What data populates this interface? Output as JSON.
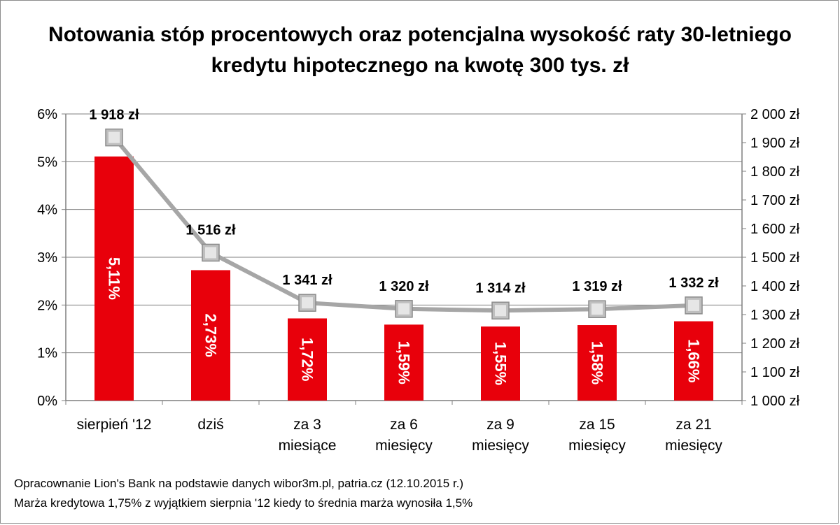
{
  "title_line1": "Notowania stóp procentowych oraz potencjalna wysokość raty 30-letniego",
  "title_line2": "kredytu hipotecznego na kwotę 300 tys. zł",
  "notes": [
    "Opracownanie Lion's Bank na podstawie danych wibor3m.pl, patria.cz (12.10.2015 r.)",
    "Marża kredytowa 1,75% z wyjątkiem sierpnia '12 kiedy to średnia marża wynosiła 1,5%"
  ],
  "colors": {
    "bar": "#e8000b",
    "line": "#a6a6a6",
    "marker": "#bfbfbf",
    "grid": "#7f7f7f"
  },
  "chart_data": {
    "type": "bar+line",
    "title": "Notowania stóp procentowych oraz potencjalna wysokość raty 30-letniego kredytu hipotecznego na kwotę 300 tys. zł",
    "categories": [
      [
        "sierpień '12"
      ],
      [
        "dziś"
      ],
      [
        "za 3",
        "miesiące"
      ],
      [
        "za 6",
        "miesięcy"
      ],
      [
        "za 9",
        "miesięcy"
      ],
      [
        "za 15",
        "miesięcy"
      ],
      [
        "za 21",
        "miesięcy"
      ]
    ],
    "bar_series": {
      "values": [
        5.11,
        2.73,
        1.72,
        1.59,
        1.55,
        1.58,
        1.66
      ],
      "labels": [
        "5,11%",
        "2,73%",
        "1,72%",
        "1,59%",
        "1,55%",
        "1,58%",
        "1,66%"
      ],
      "axis": "left"
    },
    "line_series": {
      "values": [
        1918,
        1516,
        1341,
        1320,
        1314,
        1319,
        1332
      ],
      "labels": [
        "1 918 zł",
        "1 516 zł",
        "1 341 zł",
        "1 320 zł",
        "1 314 zł",
        "1 319 zł",
        "1 332 zł"
      ],
      "axis": "right"
    },
    "y_left": {
      "min": 0,
      "max": 6,
      "step": 1,
      "tick_labels": [
        "0%",
        "1%",
        "2%",
        "3%",
        "4%",
        "5%",
        "6%"
      ]
    },
    "y_right": {
      "min": 1000,
      "max": 2000,
      "step": 100,
      "tick_labels": [
        "1 000 zł",
        "1 100 zł",
        "1 200 zł",
        "1 300 zł",
        "1 400 zł",
        "1 500 zł",
        "1 600 zł",
        "1 700 zł",
        "1 800 zł",
        "1 900 zł",
        "2 000 zł"
      ]
    },
    "grid": true,
    "legend": "none"
  }
}
